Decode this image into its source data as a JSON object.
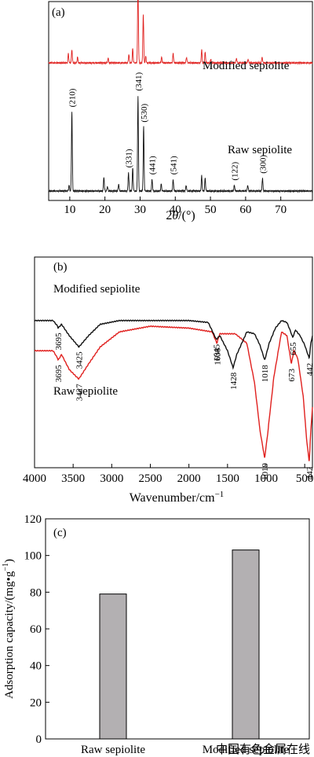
{
  "chart_data": [
    {
      "panel": "(a)",
      "type": "line",
      "xlabel": "2θ/(°)",
      "xlim": [
        4,
        79
      ],
      "xticks": [
        10,
        20,
        30,
        40,
        50,
        60,
        70
      ],
      "series": [
        {
          "name": "Modified sepiolite",
          "color": "#e0201e",
          "baseline": 0.13,
          "peaks": [
            [
              9.6,
              0.1
            ],
            [
              10.6,
              0.14
            ],
            [
              12.2,
              0.06
            ],
            [
              20.9,
              0.05
            ],
            [
              26.8,
              0.09
            ],
            [
              27.9,
              0.15
            ],
            [
              29.4,
              0.85
            ],
            [
              30.9,
              0.52
            ],
            [
              31.6,
              0.07
            ],
            [
              36.1,
              0.06
            ],
            [
              39.4,
              0.1
            ],
            [
              43.2,
              0.06
            ],
            [
              47.5,
              0.14
            ],
            [
              48.5,
              0.11
            ],
            [
              50.1,
              0.04
            ],
            [
              57.4,
              0.05
            ],
            [
              60.7,
              0.04
            ],
            [
              64.7,
              0.06
            ]
          ]
        },
        {
          "name": "Raw sepiolite",
          "color": "#111111",
          "baseline": 0.0,
          "peaks": [
            [
              9.8,
              0.05
            ],
            [
              10.6,
              0.68
            ],
            [
              19.7,
              0.12
            ],
            [
              20.7,
              0.04
            ],
            [
              23.9,
              0.06
            ],
            [
              26.7,
              0.16
            ],
            [
              27.9,
              0.2
            ],
            [
              29.4,
              0.82
            ],
            [
              31.0,
              0.55
            ],
            [
              33.4,
              0.1
            ],
            [
              36.0,
              0.06
            ],
            [
              39.4,
              0.1
            ],
            [
              43.1,
              0.05
            ],
            [
              47.5,
              0.13
            ],
            [
              48.5,
              0.11
            ],
            [
              56.8,
              0.05
            ],
            [
              60.6,
              0.05
            ],
            [
              64.8,
              0.11
            ]
          ]
        }
      ],
      "annotations": [
        {
          "text": "(210)",
          "x": 10.6
        },
        {
          "text": "(331)",
          "x": 26.7
        },
        {
          "text": "(341)",
          "x": 29.4
        },
        {
          "text": "(530)",
          "x": 31.0
        },
        {
          "text": "(441)",
          "x": 33.4
        },
        {
          "text": "(541)",
          "x": 39.4
        },
        {
          "text": "(122)",
          "x": 56.8
        },
        {
          "text": "(300)",
          "x": 64.8
        }
      ]
    },
    {
      "panel": "(b)",
      "type": "line",
      "xlabel": "Wavenumber/cm⁻¹",
      "xlim": [
        4000,
        400
      ],
      "xticks": [
        4000,
        3500,
        3000,
        2500,
        2000,
        1500,
        1000,
        500
      ],
      "series": [
        {
          "name": "Modified sepiolite",
          "color": "#e0201e",
          "points": [
            [
              4000,
              0.62
            ],
            [
              3760,
              0.62
            ],
            [
              3700,
              0.58
            ],
            [
              3695,
              0.57
            ],
            [
              3650,
              0.6
            ],
            [
              3550,
              0.52
            ],
            [
              3427,
              0.47
            ],
            [
              3300,
              0.55
            ],
            [
              3150,
              0.64
            ],
            [
              2900,
              0.72
            ],
            [
              2500,
              0.75
            ],
            [
              2000,
              0.74
            ],
            [
              1700,
              0.72
            ],
            [
              1638,
              0.66
            ],
            [
              1600,
              0.71
            ],
            [
              1400,
              0.71
            ],
            [
              1250,
              0.66
            ],
            [
              1150,
              0.45
            ],
            [
              1080,
              0.2
            ],
            [
              1019,
              0.05
            ],
            [
              980,
              0.18
            ],
            [
              900,
              0.48
            ],
            [
              800,
              0.72
            ],
            [
              730,
              0.7
            ],
            [
              700,
              0.62
            ],
            [
              673,
              0.55
            ],
            [
              640,
              0.62
            ],
            [
              590,
              0.58
            ],
            [
              520,
              0.38
            ],
            [
              475,
              0.15
            ],
            [
              442,
              0.03
            ],
            [
              420,
              0.2
            ],
            [
              400,
              0.32
            ]
          ]
        },
        {
          "name": "Raw sepiolite",
          "color": "#111111",
          "points": [
            [
              4000,
              0.78
            ],
            [
              3760,
              0.78
            ],
            [
              3700,
              0.75
            ],
            [
              3695,
              0.74
            ],
            [
              3650,
              0.76
            ],
            [
              3550,
              0.7
            ],
            [
              3425,
              0.64
            ],
            [
              3300,
              0.7
            ],
            [
              3150,
              0.76
            ],
            [
              2900,
              0.78
            ],
            [
              2500,
              0.78
            ],
            [
              2000,
              0.78
            ],
            [
              1750,
              0.77
            ],
            [
              1645,
              0.68
            ],
            [
              1600,
              0.7
            ],
            [
              1500,
              0.62
            ],
            [
              1428,
              0.53
            ],
            [
              1380,
              0.6
            ],
            [
              1250,
              0.72
            ],
            [
              1150,
              0.71
            ],
            [
              1080,
              0.65
            ],
            [
              1018,
              0.57
            ],
            [
              960,
              0.66
            ],
            [
              880,
              0.74
            ],
            [
              800,
              0.78
            ],
            [
              730,
              0.77
            ],
            [
              700,
              0.74
            ],
            [
              655,
              0.69
            ],
            [
              620,
              0.73
            ],
            [
              560,
              0.7
            ],
            [
              500,
              0.65
            ],
            [
              442,
              0.58
            ],
            [
              420,
              0.66
            ],
            [
              400,
              0.7
            ]
          ]
        }
      ],
      "annotations": [
        {
          "text": "3695",
          "series": 0,
          "x": 3695
        },
        {
          "text": "3427",
          "series": 0,
          "x": 3427
        },
        {
          "text": "1638",
          "series": 0,
          "x": 1638
        },
        {
          "text": "1019",
          "series": 0,
          "x": 1019
        },
        {
          "text": "673",
          "series": 0,
          "x": 673
        },
        {
          "text": "442",
          "series": 0,
          "x": 442
        },
        {
          "text": "3695",
          "series": 1,
          "x": 3695
        },
        {
          "text": "3425",
          "series": 1,
          "x": 3425
        },
        {
          "text": "1645",
          "series": 1,
          "x": 1645
        },
        {
          "text": "1428",
          "series": 1,
          "x": 1428
        },
        {
          "text": "1018",
          "series": 1,
          "x": 1018
        },
        {
          "text": "655",
          "series": 1,
          "x": 655
        },
        {
          "text": "442",
          "series": 1,
          "x": 442
        }
      ]
    },
    {
      "panel": "(c)",
      "type": "bar",
      "categories": [
        "Raw sepiolite",
        "Modified sepiolite"
      ],
      "values": [
        79,
        103
      ],
      "ylabel": "Adsorption capacity/(mg•g⁻¹)",
      "ylim": [
        0,
        120
      ],
      "yticks": [
        0,
        20,
        40,
        60,
        80,
        100,
        120
      ],
      "bar_color": "#b3b0b2"
    }
  ],
  "watermark": "中国有色金属在线"
}
